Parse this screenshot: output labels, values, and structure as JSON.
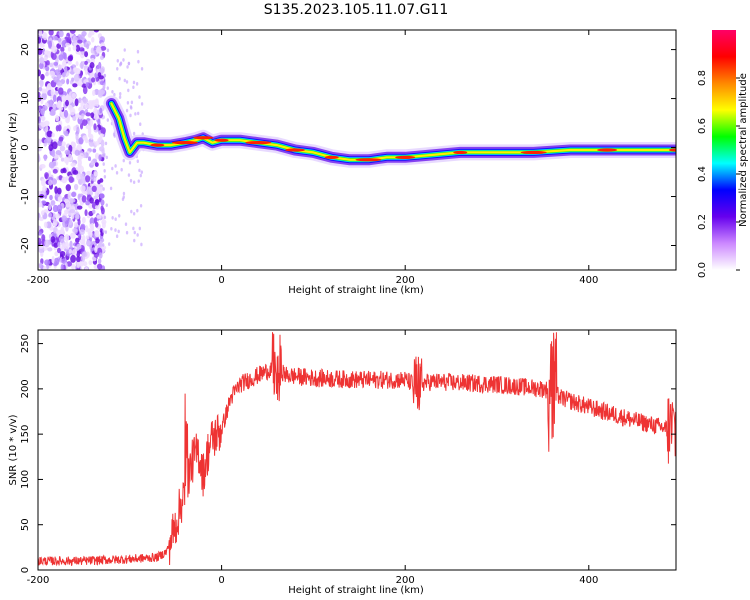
{
  "title": "S135.2023.105.11.07.G11",
  "chart_data": [
    {
      "type": "heatmap",
      "xlabel": "Height of straight line (km)",
      "ylabel": "Frequency (Hz)",
      "xlim": [
        -200,
        495
      ],
      "ylim": [
        -25,
        24
      ],
      "xticks": [
        -200,
        0,
        200,
        400
      ],
      "yticks": [
        20,
        10,
        0,
        -10,
        -20
      ],
      "colorbar": {
        "label": "Normalized spectral amplitude",
        "range": [
          0,
          1
        ],
        "ticks": [
          0.0,
          0.2,
          0.4,
          0.6,
          0.8
        ],
        "tick_labels": [
          "0.0",
          "0.2",
          "0.4",
          "0.6",
          "0.8"
        ],
        "colors": [
          "#ffffff",
          "#cc88ff",
          "#6600ee",
          "#0000ff",
          "#00ffff",
          "#00ff00",
          "#ffff00",
          "#ff8800",
          "#ff0000",
          "#ff0066"
        ]
      },
      "ridge": {
        "x": [
          -120,
          -112,
          -106,
          -100,
          -92,
          -85,
          -70,
          -55,
          -40,
          -28,
          -20,
          -10,
          0,
          20,
          40,
          60,
          80,
          100,
          120,
          140,
          160,
          180,
          200,
          230,
          260,
          300,
          340,
          380,
          420,
          460,
          495
        ],
        "y": [
          9,
          6,
          2,
          -1,
          1,
          1,
          0.5,
          0.5,
          1,
          1.5,
          2,
          1,
          1.5,
          1.5,
          1,
          0.5,
          -0.5,
          -1,
          -2,
          -2.5,
          -2.5,
          -2,
          -2,
          -1.5,
          -1,
          -1,
          -1,
          -0.5,
          -0.5,
          -0.5,
          -0.5
        ]
      }
    },
    {
      "type": "line",
      "xlabel": "Height of straight line (km)",
      "ylabel": "SNR (10 * v/v)",
      "xlim": [
        -200,
        495
      ],
      "ylim": [
        0,
        265
      ],
      "xticks": [
        -200,
        0,
        200,
        400
      ],
      "yticks": [
        0,
        50,
        100,
        150,
        200,
        250
      ],
      "color": "#ee3333",
      "series": [
        {
          "x": [
            -200,
            -150,
            -100,
            -70,
            -60,
            -55,
            -50,
            -45,
            -40,
            -35,
            -30,
            -25,
            -20,
            -15,
            -10,
            -5,
            0,
            10,
            20,
            30,
            40,
            50,
            60,
            70,
            100,
            150,
            200,
            210,
            230,
            300,
            350,
            360,
            370,
            400,
            450,
            490
          ],
          "y": [
            10,
            10,
            12,
            14,
            20,
            35,
            50,
            70,
            90,
            110,
            125,
            130,
            105,
            130,
            145,
            150,
            155,
            190,
            205,
            210,
            215,
            220,
            225,
            215,
            212,
            210,
            210,
            205,
            208,
            205,
            200,
            198,
            190,
            180,
            165,
            155
          ]
        }
      ]
    }
  ]
}
